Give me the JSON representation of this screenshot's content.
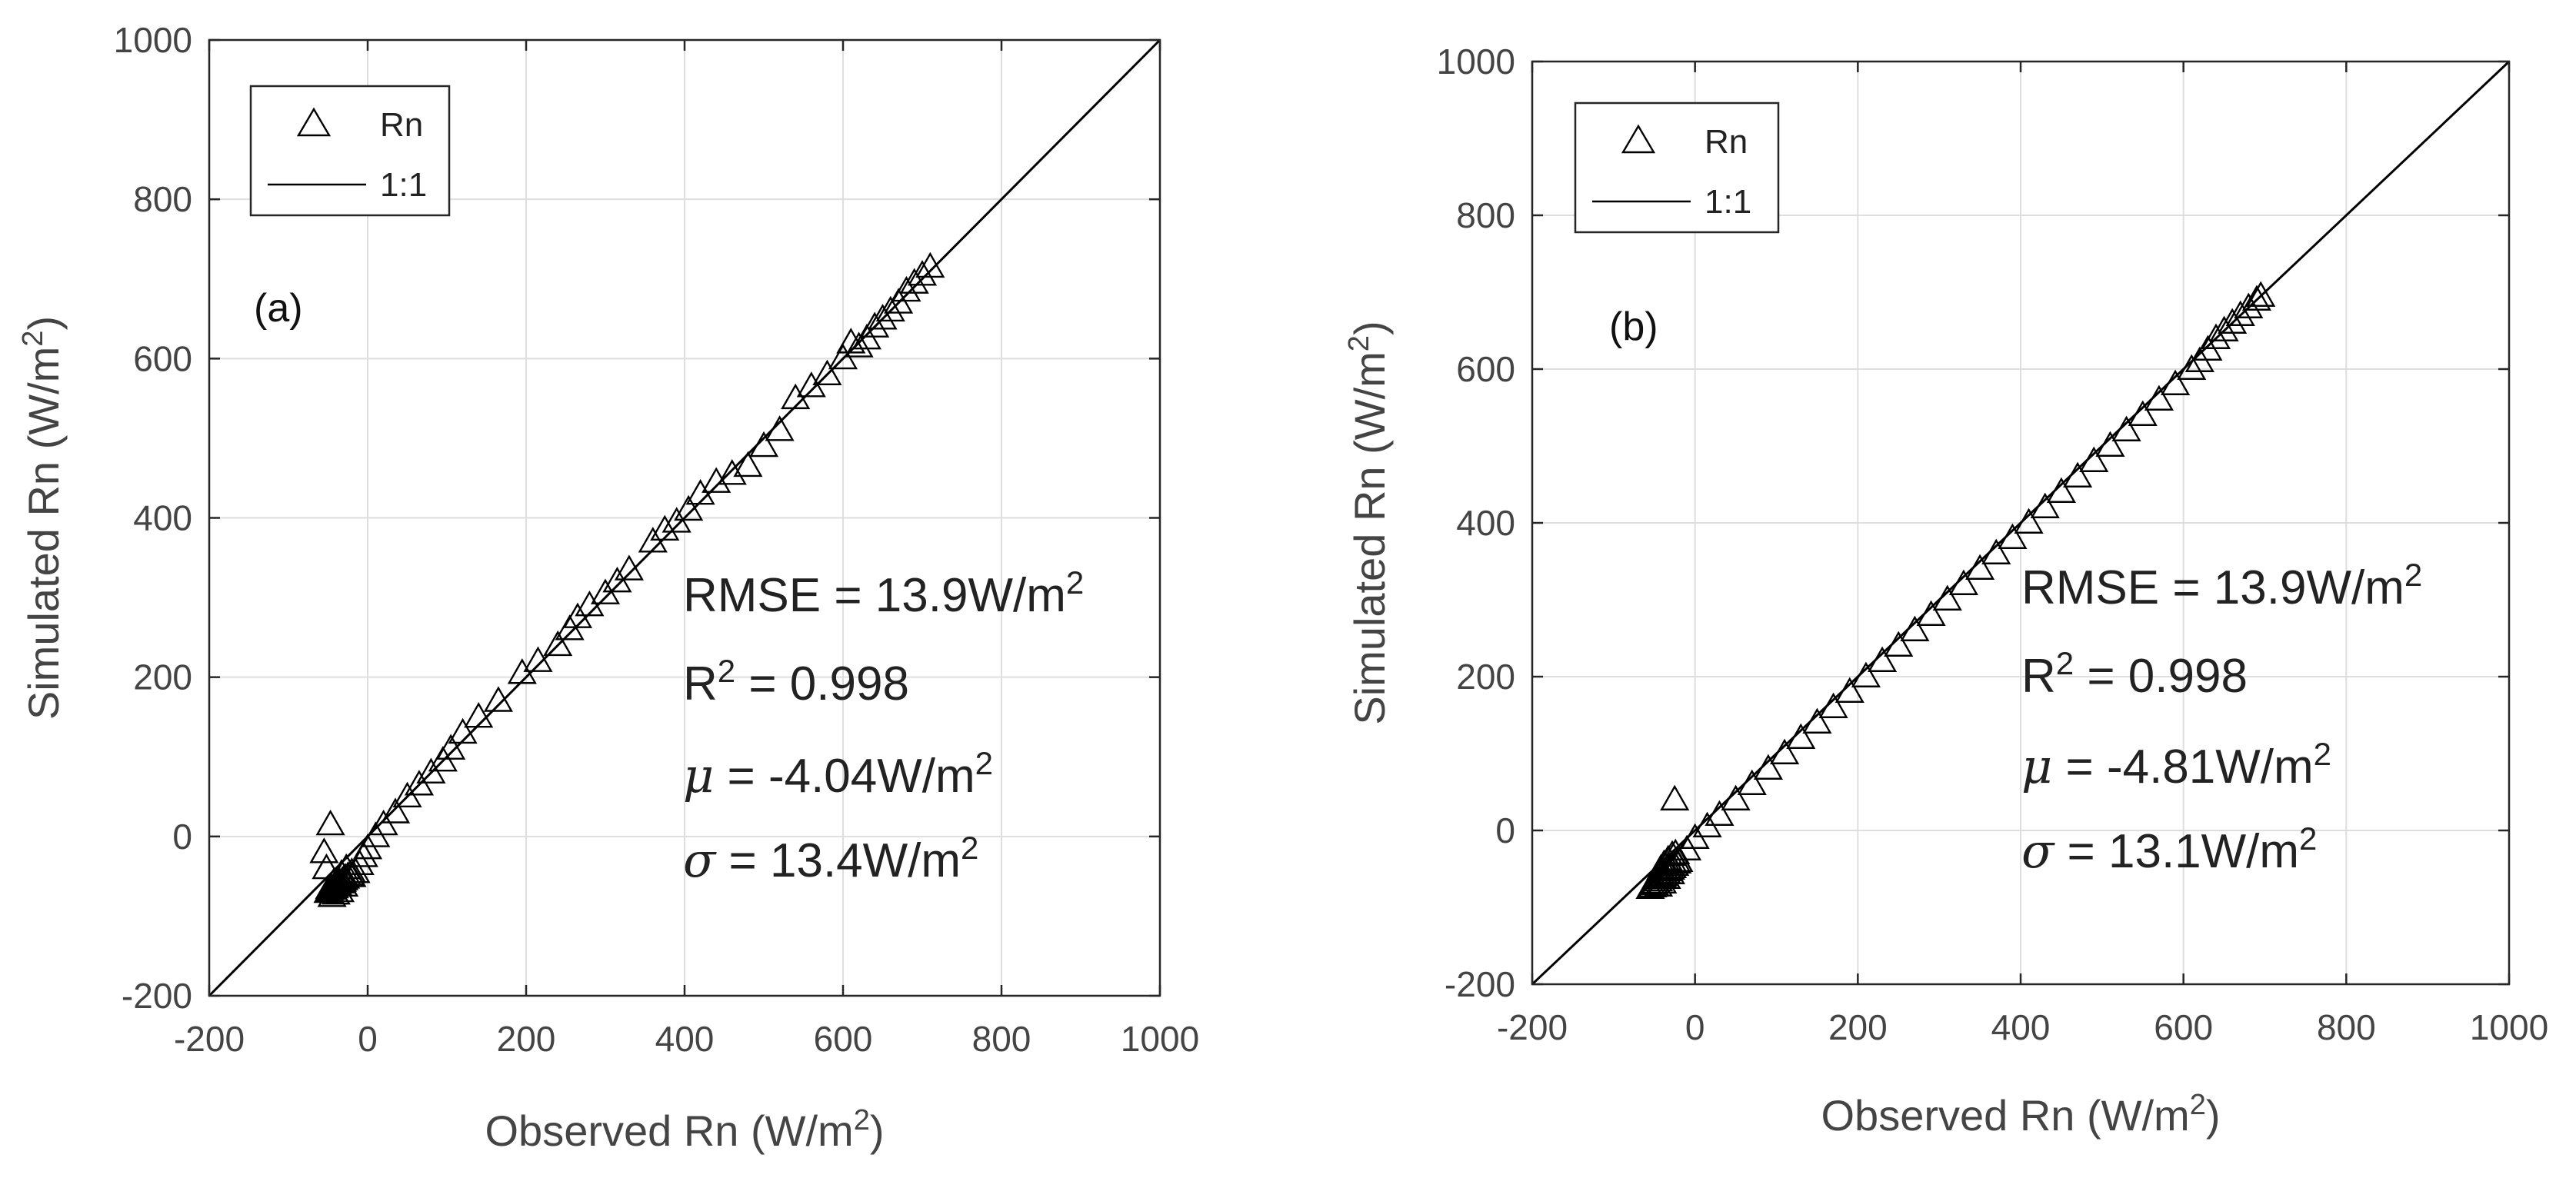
{
  "colors": {
    "marker": "#000000",
    "line": "#000000",
    "grid": "#dedede",
    "axis": "#262626",
    "text": "#444444"
  },
  "chart_data": [
    {
      "type": "scatter",
      "panel_label": "(a)",
      "xlabel": {
        "prefix": "Observed Rn (W/m",
        "sup": "2",
        "suffix": ")"
      },
      "ylabel": {
        "prefix": "Simulated Rn (W/m",
        "sup": "2",
        "suffix": ")"
      },
      "xlim": [
        -200,
        1000
      ],
      "ylim": [
        -200,
        1000
      ],
      "xticks": [
        -200,
        0,
        200,
        400,
        600,
        800,
        1000
      ],
      "yticks": [
        -200,
        0,
        200,
        400,
        600,
        800,
        1000
      ],
      "grid": true,
      "legend": {
        "position": "top-left",
        "entries": [
          {
            "label": "Rn",
            "symbol": "triangle"
          },
          {
            "label": "1:1",
            "symbol": "line"
          }
        ]
      },
      "stats": [
        {
          "prefix": "RMSE = 13.9W/m",
          "sup": "2"
        },
        {
          "prefix": "R",
          "sup": "2",
          "suffix": " = 0.998"
        },
        {
          "symbol": "μ",
          "prefix": " = -4.04W/m",
          "sup": "2"
        },
        {
          "symbol": "σ",
          "prefix": " = 13.4W/m",
          "sup": "2"
        }
      ],
      "series": [
        {
          "name": "Rn",
          "marker": "triangle",
          "x": [
            -50,
            -48,
            -45,
            -42,
            -40,
            -38,
            -35,
            -32,
            -30,
            -28,
            -25,
            -22,
            -20,
            -45,
            -40,
            -35,
            -30,
            -38,
            -33,
            -27,
            -43,
            -48,
            -52,
            -55,
            -47,
            -20,
            -15,
            -10,
            -5,
            0,
            10,
            20,
            35,
            50,
            65,
            80,
            95,
            105,
            120,
            140,
            165,
            195,
            215,
            240,
            255,
            265,
            280,
            300,
            315,
            330,
            360,
            375,
            390,
            405,
            420,
            440,
            460,
            480,
            500,
            520,
            540,
            560,
            580,
            600,
            610,
            620,
            630,
            640,
            650,
            660,
            670,
            680,
            690,
            700,
            710
          ],
          "y": [
            -70,
            -68,
            -66,
            -64,
            -62,
            -60,
            -58,
            -56,
            -54,
            -52,
            -50,
            -48,
            -45,
            -75,
            -72,
            -69,
            -62,
            -55,
            -47,
            -40,
            -58,
            -65,
            -40,
            -20,
            15,
            -50,
            -45,
            -35,
            -25,
            -15,
            0,
            15,
            30,
            50,
            65,
            80,
            95,
            110,
            130,
            150,
            170,
            205,
            220,
            240,
            260,
            275,
            290,
            305,
            320,
            335,
            370,
            385,
            395,
            410,
            430,
            445,
            455,
            465,
            490,
            510,
            550,
            565,
            580,
            600,
            620,
            615,
            625,
            640,
            650,
            660,
            670,
            685,
            695,
            705,
            715
          ]
        }
      ],
      "reference_line": {
        "label": "1:1",
        "from": [
          -200,
          -200
        ],
        "to": [
          1000,
          1000
        ]
      }
    },
    {
      "type": "scatter",
      "panel_label": "(b)",
      "xlabel": {
        "prefix": "Observed Rn (W/m",
        "sup": "2",
        "suffix": ")"
      },
      "ylabel": {
        "prefix": "Simulated Rn (W/m",
        "sup": "2",
        "suffix": ")"
      },
      "xlim": [
        -200,
        1000
      ],
      "ylim": [
        -200,
        1000
      ],
      "xticks": [
        -200,
        0,
        200,
        400,
        600,
        800,
        1000
      ],
      "yticks": [
        -200,
        0,
        200,
        400,
        600,
        800,
        1000
      ],
      "grid": true,
      "legend": {
        "position": "top-left",
        "entries": [
          {
            "label": "Rn",
            "symbol": "triangle"
          },
          {
            "label": "1:1",
            "symbol": "line"
          }
        ]
      },
      "stats": [
        {
          "prefix": "RMSE = 13.9W/m",
          "sup": "2"
        },
        {
          "prefix": "R",
          "sup": "2",
          "suffix": " = 0.998"
        },
        {
          "symbol": "μ",
          "prefix": " = -4.81W/m",
          "sup": "2"
        },
        {
          "symbol": "σ",
          "prefix": " = 13.1W/m",
          "sup": "2"
        }
      ],
      "series": [
        {
          "name": "Rn",
          "marker": "triangle",
          "x": [
            -55,
            -52,
            -50,
            -48,
            -45,
            -42,
            -40,
            -38,
            -35,
            -32,
            -30,
            -28,
            -25,
            -22,
            -45,
            -40,
            -35,
            -30,
            -42,
            -38,
            -33,
            -28,
            -24,
            -25,
            -20,
            -10,
            0,
            15,
            30,
            50,
            70,
            90,
            110,
            130,
            150,
            170,
            190,
            210,
            230,
            250,
            270,
            290,
            310,
            330,
            350,
            370,
            390,
            410,
            430,
            450,
            470,
            490,
            510,
            530,
            550,
            570,
            590,
            610,
            620,
            630,
            640,
            650,
            660,
            670,
            680,
            690,
            695
          ],
          "y": [
            -75,
            -73,
            -70,
            -68,
            -65,
            -62,
            -60,
            -58,
            -55,
            -52,
            -50,
            -48,
            -45,
            -42,
            -72,
            -68,
            -62,
            -56,
            -50,
            -44,
            -38,
            -32,
            -30,
            40,
            -40,
            -25,
            -10,
            5,
            20,
            40,
            60,
            80,
            100,
            120,
            140,
            160,
            180,
            200,
            220,
            240,
            260,
            280,
            300,
            320,
            340,
            360,
            380,
            400,
            420,
            440,
            460,
            480,
            500,
            520,
            540,
            560,
            580,
            600,
            610,
            625,
            640,
            650,
            660,
            670,
            680,
            690,
            695
          ]
        }
      ],
      "reference_line": {
        "label": "1:1",
        "from": [
          -200,
          -200
        ],
        "to": [
          1000,
          1000
        ]
      }
    }
  ]
}
